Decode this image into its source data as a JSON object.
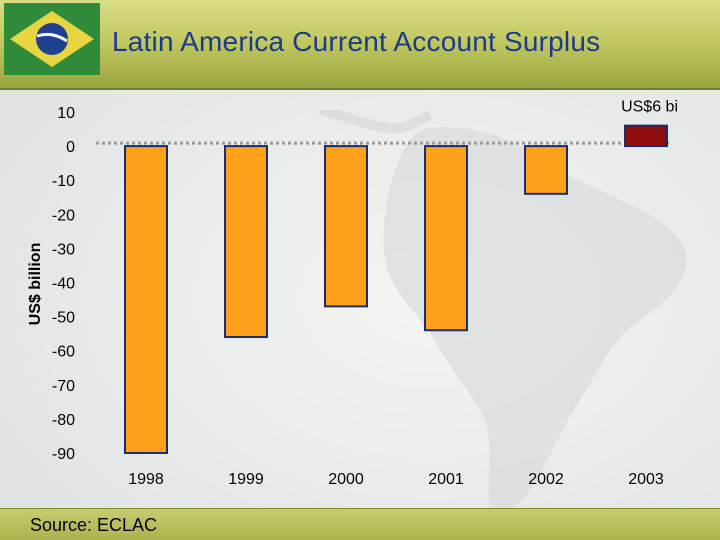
{
  "title": "Latin America Current Account Surplus",
  "source": "Source: ECLAC",
  "colors": {
    "bar": "#FFA11A",
    "highlight_bar": "#8E0E0E",
    "title": "#1A3A8C"
  },
  "chart_data": {
    "type": "bar",
    "title": "Latin America Current Account Surplus",
    "ylabel": "US$ billion",
    "xlabel": "",
    "categories": [
      "1998",
      "1999",
      "2000",
      "2001",
      "2002",
      "2003"
    ],
    "values": [
      -90,
      -56,
      -47,
      -54,
      -14,
      6
    ],
    "ylim": [
      -90,
      10
    ],
    "yticks": [
      "10",
      "0",
      "-10",
      "-20",
      "-30",
      "-40",
      "-50",
      "-60",
      "-70",
      "-80",
      "-90"
    ],
    "annotations": [
      {
        "category": "2003",
        "text": "US$6 bi"
      }
    ],
    "highlight": "2003",
    "grid": false,
    "zero_line": "dotted"
  }
}
